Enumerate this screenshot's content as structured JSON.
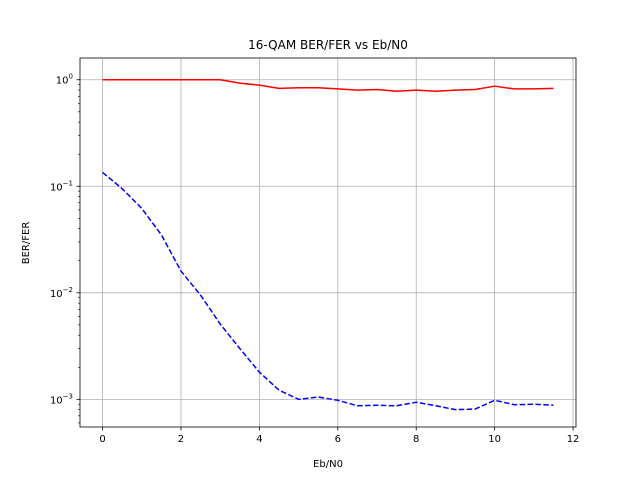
{
  "chart_data": {
    "type": "line",
    "title": "16-QAM BER/FER vs Eb/N0",
    "xlabel": "Eb/N0",
    "ylabel": "BER/FER",
    "xlim": [
      -0.575,
      12.075
    ],
    "ylim": [
      0.00055,
      1.6
    ],
    "yscale": "log",
    "grid": true,
    "xticks": [
      0,
      2,
      4,
      6,
      8,
      10,
      12
    ],
    "xtick_labels": [
      "0",
      "2",
      "4",
      "6",
      "8",
      "10",
      "12"
    ],
    "yticks": [
      0.001,
      0.01,
      0.1,
      1
    ],
    "ytick_labels": [
      {
        "base": "10",
        "exp": "−3"
      },
      {
        "base": "10",
        "exp": "−2"
      },
      {
        "base": "10",
        "exp": "−1"
      },
      {
        "base": "10",
        "exp": "0"
      }
    ],
    "x": [
      0,
      0.5,
      1,
      1.5,
      2,
      2.5,
      3,
      3.5,
      4,
      4.5,
      5,
      5.5,
      6,
      6.5,
      7,
      7.5,
      8,
      8.5,
      9,
      9.5,
      10,
      10.5,
      11,
      11.5
    ],
    "series": [
      {
        "color": "#ff0000",
        "linestyle": "solid",
        "values": [
          1.0,
          1.0,
          1.0,
          1.0,
          1.0,
          1.0,
          1.0,
          0.93,
          0.89,
          0.83,
          0.84,
          0.84,
          0.82,
          0.8,
          0.81,
          0.78,
          0.8,
          0.78,
          0.8,
          0.81,
          0.87,
          0.82,
          0.82,
          0.83
        ]
      },
      {
        "color": "#0000ff",
        "linestyle": "dashed",
        "values": [
          0.135,
          0.095,
          0.062,
          0.035,
          0.016,
          0.0095,
          0.0051,
          0.003,
          0.0018,
          0.00122,
          0.001,
          0.00105,
          0.00098,
          0.00087,
          0.00088,
          0.00087,
          0.00094,
          0.00087,
          0.0008,
          0.00081,
          0.00098,
          0.00089,
          0.0009,
          0.00088
        ]
      }
    ]
  }
}
